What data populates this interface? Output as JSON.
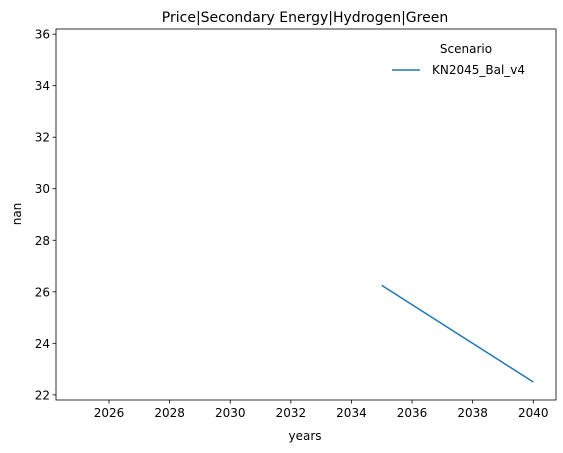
{
  "chart_data": {
    "type": "line",
    "title": "Price|Secondary Energy|Hydrogen|Green",
    "xlabel": "years",
    "ylabel": "nan",
    "xlim": [
      2024.25,
      2040.75
    ],
    "ylim": [
      21.8,
      36.2
    ],
    "x_ticks": [
      2026,
      2028,
      2030,
      2032,
      2034,
      2036,
      2038,
      2040
    ],
    "y_ticks": [
      22,
      24,
      26,
      28,
      30,
      32,
      34,
      36
    ],
    "grid": false,
    "legend": {
      "title": "Scenario",
      "placement": "top-right"
    },
    "series": [
      {
        "name": "KN2045_Bal_v4",
        "color": "#1f77b4",
        "x": [
          2035,
          2040
        ],
        "y": [
          26.25,
          22.5
        ]
      }
    ]
  }
}
